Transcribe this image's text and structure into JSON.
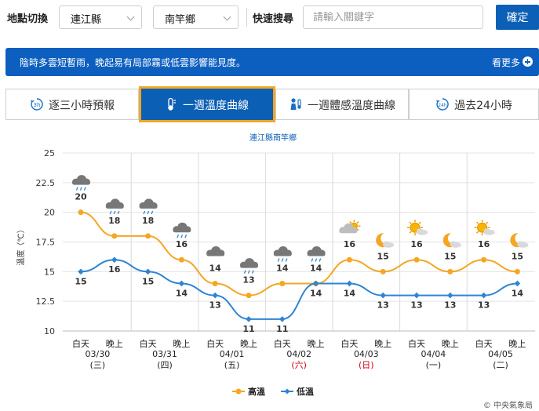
{
  "toolbar": {
    "location_label": "地點切換",
    "county_value": "連江縣",
    "town_value": "南竿鄉",
    "search_label": "快速搜尋",
    "search_placeholder": "請輸入關鍵字",
    "confirm_label": "確定"
  },
  "alert": {
    "text": "陰時多雲短暫雨，晚起易有局部霧或低雲影響能見度。",
    "more_label": "看更多"
  },
  "tabs": [
    {
      "label": "逐三小時預報",
      "icon": "3h-clock-icon",
      "active": false
    },
    {
      "label": "一週溫度曲線",
      "icon": "thermometer-icon",
      "active": true
    },
    {
      "label": "一週體感溫度曲線",
      "icon": "feels-like-icon",
      "active": false
    },
    {
      "label": "過去24小時",
      "icon": "24h-clock-icon",
      "active": false
    }
  ],
  "credit": "© 中央氣象局",
  "colors": {
    "high": "#f5a623",
    "low": "#2f84d4",
    "holiday": "#d0021b",
    "grid": "#e3e3e3"
  },
  "chart_data": {
    "type": "line",
    "title": "連江縣南竿鄉",
    "xlabel": "",
    "ylabel": "溫度（℃）",
    "ylim": [
      10,
      25
    ],
    "yticks": [
      "10",
      "12.5",
      "15",
      "17.5",
      "20",
      "22.5",
      "25"
    ],
    "periods": [
      {
        "label": "白天",
        "date": "03/30",
        "weekday": "(三)",
        "holiday": false,
        "icon": "cloudy-rain-icon"
      },
      {
        "label": "晚上",
        "date": "",
        "weekday": "",
        "holiday": false,
        "icon": "cloudy-rain-icon"
      },
      {
        "label": "白天",
        "date": "03/31",
        "weekday": "(四)",
        "holiday": false,
        "icon": "cloudy-rain-icon"
      },
      {
        "label": "晚上",
        "date": "",
        "weekday": "",
        "holiday": false,
        "icon": "cloudy-rain-icon"
      },
      {
        "label": "白天",
        "date": "04/01",
        "weekday": "(五)",
        "holiday": false,
        "icon": "cloudy-icon"
      },
      {
        "label": "晚上",
        "date": "",
        "weekday": "",
        "holiday": false,
        "icon": "cloudy-rain-icon"
      },
      {
        "label": "白天",
        "date": "04/02",
        "weekday": "(六)",
        "holiday": true,
        "icon": "cloudy-rain-icon"
      },
      {
        "label": "晚上",
        "date": "",
        "weekday": "",
        "holiday": false,
        "icon": "cloudy-rain-icon"
      },
      {
        "label": "白天",
        "date": "04/03",
        "weekday": "(日)",
        "holiday": true,
        "icon": "cloudy-sun-icon"
      },
      {
        "label": "晚上",
        "date": "",
        "weekday": "",
        "holiday": false,
        "icon": "moon-cloud-icon"
      },
      {
        "label": "白天",
        "date": "04/04",
        "weekday": "(一)",
        "holiday": false,
        "icon": "sun-cloud-icon"
      },
      {
        "label": "晚上",
        "date": "",
        "weekday": "",
        "holiday": false,
        "icon": "moon-cloud-icon"
      },
      {
        "label": "白天",
        "date": "04/05",
        "weekday": "(二)",
        "holiday": false,
        "icon": "sun-cloud-icon"
      },
      {
        "label": "晚上",
        "date": "",
        "weekday": "",
        "holiday": false,
        "icon": "moon-cloud-icon"
      }
    ],
    "series": [
      {
        "name": "高溫",
        "color": "#f5a623",
        "values": [
          20,
          18,
          18,
          16,
          14,
          13,
          14,
          14,
          16,
          15,
          16,
          15,
          16,
          15
        ]
      },
      {
        "name": "低溫",
        "color": "#2f84d4",
        "values": [
          15,
          16,
          15,
          14,
          13,
          11,
          11,
          14,
          14,
          13,
          13,
          13,
          13,
          14
        ]
      }
    ],
    "legend_position": "bottom-center",
    "grid": true
  }
}
